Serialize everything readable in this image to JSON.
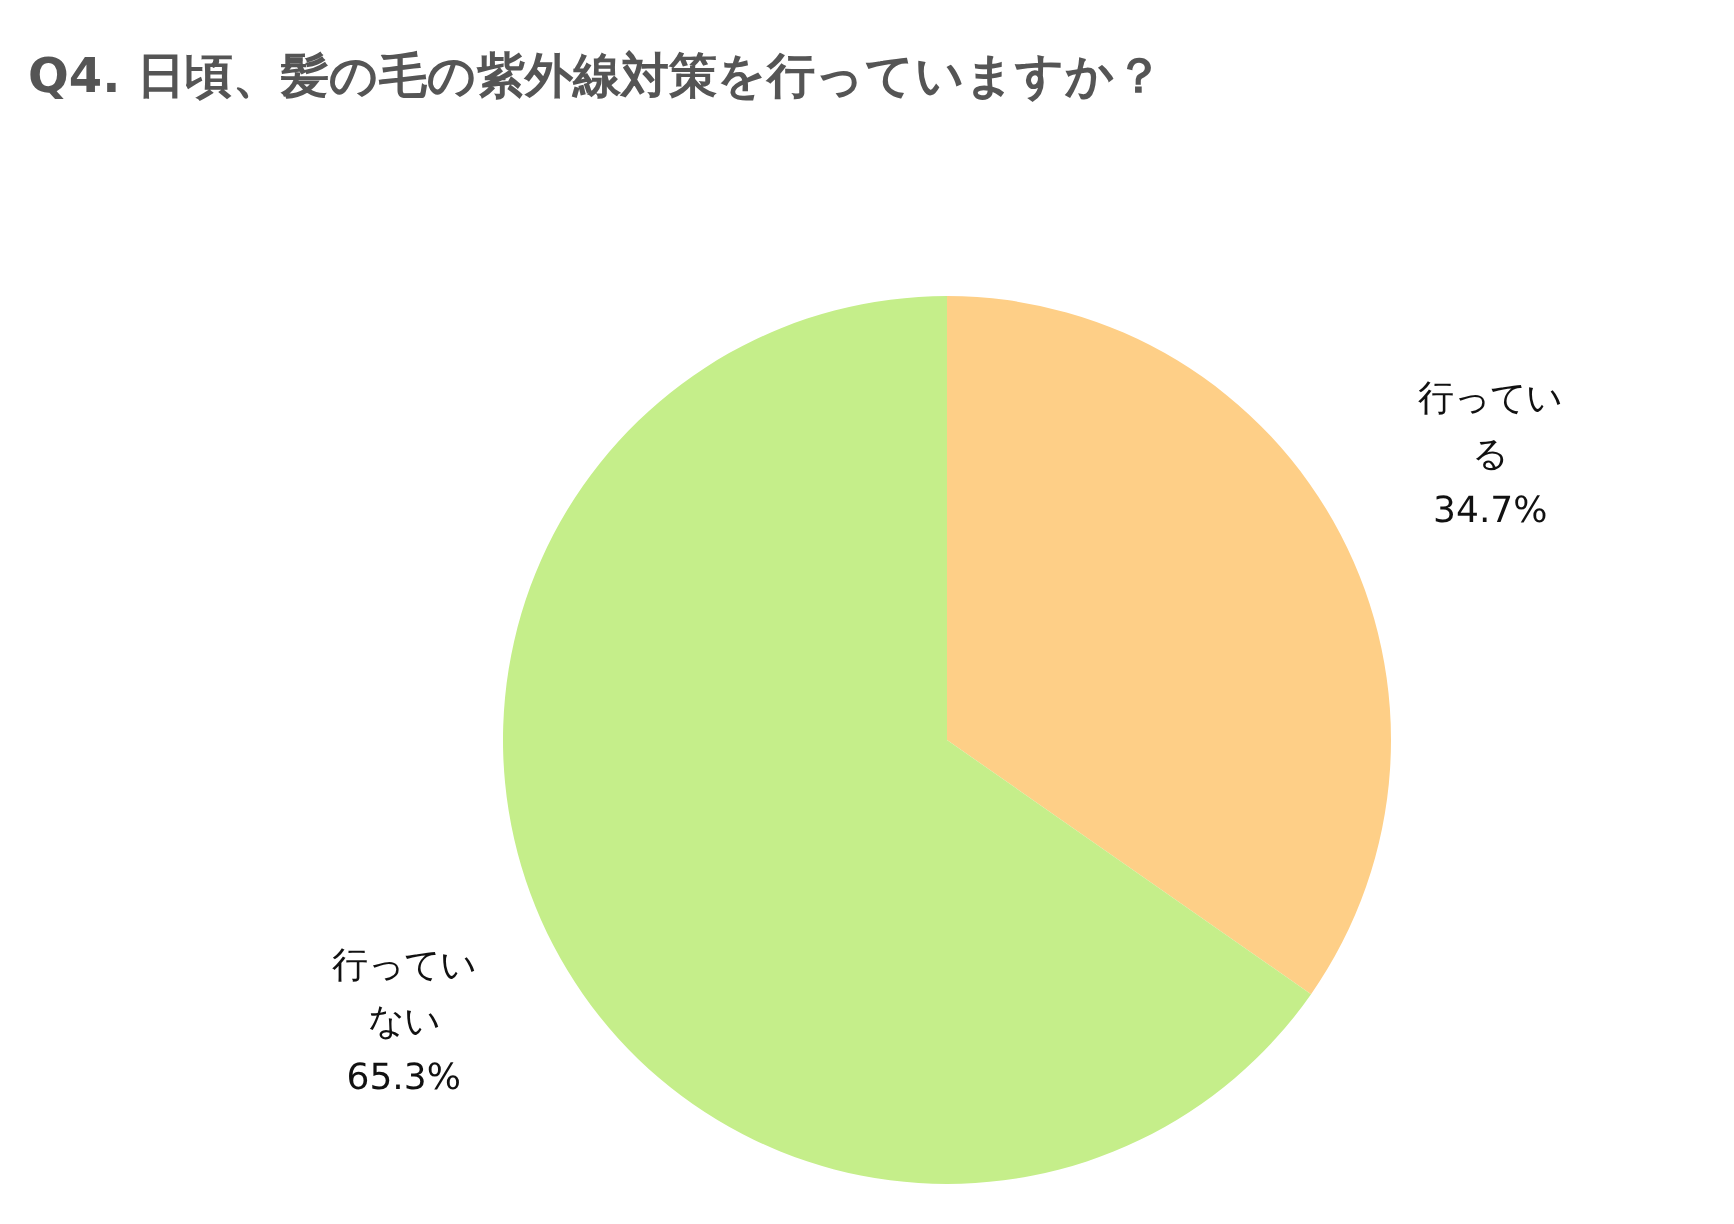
{
  "chart_data": {
    "type": "pie",
    "title": "Q4. 日頃、髪の毛の紫外線対策を行っていますか？",
    "categories": [
      "行っている",
      "行っていない"
    ],
    "values": [
      34.7,
      65.3
    ],
    "colors": [
      "#fecf87",
      "#c5ee8a"
    ],
    "value_labels": [
      "34.7%",
      "65.3%"
    ],
    "legend": false
  }
}
